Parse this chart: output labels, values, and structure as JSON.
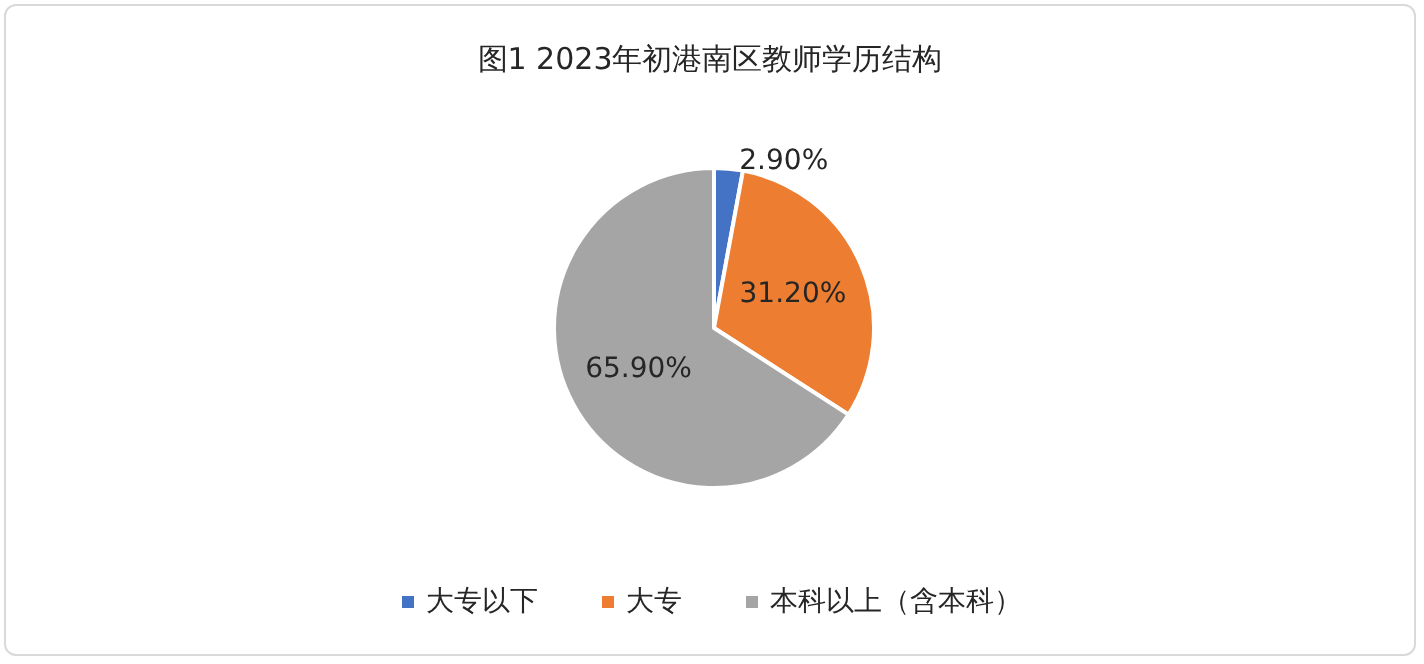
{
  "chart_data": {
    "type": "pie",
    "title": "图1 2023年初港南区教师学历结构",
    "categories": [
      "大专以下",
      "大专",
      "本科以上（含本科）"
    ],
    "values": [
      2.9,
      31.2,
      65.9
    ],
    "value_labels": [
      "2.90%",
      "31.20%",
      "65.90%"
    ],
    "colors": [
      "#4472c4",
      "#ed7d31",
      "#a5a5a5"
    ],
    "legend": "bottom"
  }
}
